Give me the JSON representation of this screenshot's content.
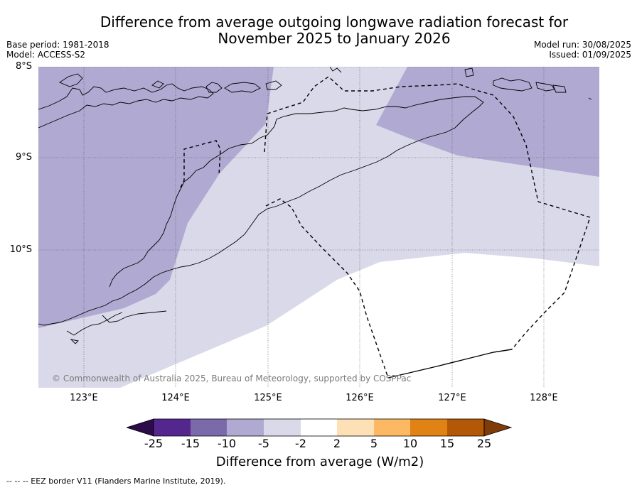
{
  "title_line1": "Difference from average outgoing longwave radiation forecast for",
  "title_line2": "November 2025 to January 2026",
  "meta": {
    "base_period": "Base period: 1981-2018",
    "model": "Model: ACCESS-S2",
    "model_run": "Model run: 30/08/2025",
    "issued": "Issued: 01/09/2025"
  },
  "latitudes": [
    "8°S",
    "9°S",
    "10°S"
  ],
  "longitudes": [
    "123°E",
    "124°E",
    "125°E",
    "126°E",
    "127°E",
    "128°E"
  ],
  "credit": "© Commonwealth of Australia 2025, Bureau of Meteorology, supported by COSPPac",
  "colorbar": {
    "ticks": [
      "-25",
      "-15",
      "-10",
      "-5",
      "-2",
      "2",
      "5",
      "10",
      "15",
      "25"
    ],
    "colors": [
      "#2d0a4a",
      "#54278f",
      "#7b6aa9",
      "#b0a9d2",
      "#d9d9ea",
      "#ffffff",
      "#fee0b6",
      "#fdb863",
      "#e08214",
      "#b35806",
      "#7f3b08"
    ],
    "label": "Difference from average (W/m2)"
  },
  "footnote": "--  --  -- EEZ border V11 (Flanders Marine Institute, 2019).",
  "legend_colors": {
    "band_minus10_minus5": "#b0a9d2",
    "band_minus5_minus2": "#d9d9ea",
    "band_minus2_2": "#ffffff"
  }
}
